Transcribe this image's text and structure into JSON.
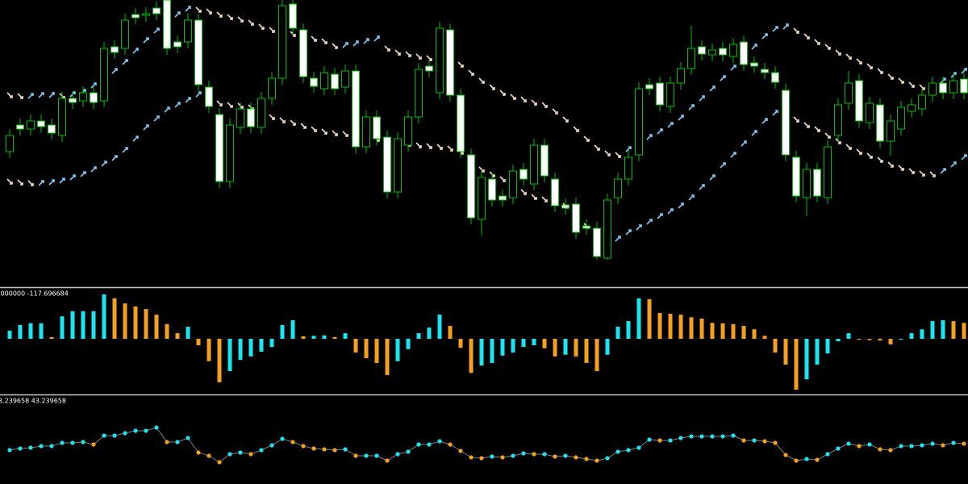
{
  "chart_data": [
    {
      "type": "candlestick",
      "up_color": "#00c000",
      "down_color": "#ffffff",
      "wick_color": "#00c000",
      "rising_arrow_color": "#7ec8f5",
      "falling_arrow_color": "#f3dcc0",
      "ylim": [
        0,
        360
      ],
      "open": [
        172,
        205,
        200,
        210,
        205,
        192,
        238,
        235,
        245,
        235,
        302,
        300,
        342,
        341,
        350,
        360,
        308,
        308,
        335,
        252,
        218,
        135,
        202,
        225,
        202,
        238,
        263,
        355,
        323,
        263,
        250,
        268,
        252,
        272,
        178,
        215,
        190,
        122,
        180,
        215,
        278,
        245,
        323,
        242,
        168,
        88,
        138,
        117,
        115,
        150,
        132,
        180,
        138,
        106,
        107,
        80,
        77,
        40,
        115,
        138,
        168,
        255,
        257,
        228,
        257,
        275,
        302,
        292,
        300,
        290,
        308,
        282,
        274,
        270,
        248,
        165,
        115,
        150,
        115,
        192,
        232,
        260,
        208,
        230,
        185,
        200,
        222,
        225,
        242,
        257,
        245,
        262
      ],
      "high": [
        200,
        213,
        218,
        218,
        213,
        246,
        246,
        253,
        253,
        308,
        310,
        343,
        350,
        351,
        358,
        360,
        316,
        343,
        343,
        260,
        226,
        213,
        233,
        233,
        246,
        271,
        360,
        360,
        331,
        271,
        278,
        276,
        280,
        280,
        223,
        223,
        198,
        196,
        223,
        282,
        286,
        333,
        331,
        250,
        176,
        148,
        146,
        125,
        156,
        158,
        188,
        188,
        146,
        114,
        115,
        88,
        85,
        120,
        146,
        173,
        258,
        263,
        265,
        265,
        283,
        328,
        310,
        306,
        308,
        313,
        316,
        290,
        282,
        278,
        256,
        173,
        158,
        158,
        186,
        238,
        272,
        268,
        240,
        238,
        218,
        235,
        238,
        250,
        265,
        265,
        268,
        270
      ],
      "low": [
        164,
        192,
        192,
        195,
        187,
        184,
        225,
        227,
        225,
        227,
        287,
        292,
        330,
        333,
        335,
        292,
        294,
        300,
        247,
        220,
        127,
        127,
        194,
        195,
        194,
        230,
        255,
        317,
        257,
        245,
        242,
        242,
        244,
        170,
        170,
        180,
        114,
        114,
        172,
        207,
        264,
        237,
        234,
        164,
        82,
        68,
        104,
        104,
        107,
        130,
        124,
        134,
        97,
        94,
        64,
        69,
        38,
        38,
        107,
        130,
        160,
        242,
        222,
        220,
        249,
        267,
        285,
        284,
        284,
        282,
        272,
        270,
        262,
        250,
        160,
        109,
        92,
        109,
        107,
        184,
        224,
        202,
        200,
        177,
        167,
        192,
        214,
        217,
        234,
        237,
        237,
        237
      ],
      "close": [
        192,
        200,
        210,
        203,
        195,
        238,
        233,
        245,
        233,
        300,
        295,
        335,
        338,
        343,
        343,
        300,
        302,
        335,
        255,
        228,
        135,
        205,
        225,
        203,
        238,
        263,
        353,
        325,
        265,
        253,
        270,
        250,
        272,
        178,
        215,
        188,
        122,
        188,
        215,
        274,
        272,
        325,
        242,
        172,
        90,
        140,
        112,
        112,
        148,
        138,
        180,
        142,
        105,
        102,
        72,
        77,
        42,
        112,
        138,
        165,
        250,
        250,
        230,
        257,
        275,
        300,
        293,
        298,
        292,
        305,
        280,
        278,
        270,
        258,
        168,
        117,
        150,
        117,
        178,
        230,
        257,
        210,
        232,
        185,
        210,
        227,
        230,
        242,
        257,
        245,
        260,
        245
      ],
      "series": [
        {
          "values": [
            242,
            241,
            241,
            242,
            242,
            241,
            243,
            246,
            254,
            263,
            272,
            283,
            297,
            310,
            322,
            334,
            342,
            349,
            348,
            346,
            342,
            339,
            336,
            332,
            327,
            323,
            320,
            318,
            316,
            312,
            309,
            303,
            304,
            306,
            309,
            312,
            300,
            295,
            293,
            290,
            288,
            288,
            284,
            280,
            270,
            260,
            252,
            245,
            240,
            237,
            233,
            230,
            222,
            212,
            200,
            188,
            177,
            170,
            168,
            175,
            184,
            190,
            197,
            205,
            214,
            227,
            238,
            250,
            263,
            276,
            288,
            302,
            315,
            324,
            327,
            322,
            315,
            308,
            302,
            295,
            290,
            284,
            278,
            272,
            265,
            260,
            255,
            252,
            250,
            260,
            267,
            272
          ]
        },
        {
          "values": [
            135,
            134,
            133,
            133,
            134,
            136,
            140,
            144,
            150,
            157,
            164,
            174,
            188,
            202,
            213,
            224,
            230,
            236,
            243,
            235,
            232,
            230,
            229,
            227,
            220,
            215,
            211,
            208,
            204,
            200,
            197,
            195,
            194,
            192,
            190,
            188,
            186,
            184,
            182,
            180,
            179,
            178,
            176,
            172,
            157,
            150,
            144,
            138,
            130,
            122,
            116,
            113,
            110,
            105,
            94,
            80,
            68,
            62,
            64,
            72,
            78,
            85,
            92,
            98,
            105,
            115,
            128,
            140,
            155,
            168,
            182,
            195,
            210,
            220,
            222,
            212,
            205,
            200,
            192,
            185,
            178,
            172,
            167,
            162,
            156,
            152,
            148,
            145,
            144,
            148,
            156,
            165
          ]
        }
      ]
    },
    {
      "type": "bar",
      "header": ".000000 -117.696684",
      "rising_color": "#19e6f0",
      "falling_color": "#f5a01e",
      "ylim": [
        -131,
        116
      ],
      "values": [
        19,
        32,
        36,
        36,
        4,
        52,
        64,
        64,
        64,
        103,
        94,
        82,
        75,
        69,
        56,
        34,
        13,
        28,
        -15,
        -52,
        -101,
        -75,
        -49,
        -41,
        -30,
        -19,
        32,
        43,
        6,
        7,
        8,
        4,
        13,
        -32,
        -45,
        -56,
        -84,
        -52,
        -24,
        13,
        26,
        56,
        30,
        -21,
        -79,
        -62,
        -56,
        -39,
        -32,
        -19,
        -15,
        -22,
        -41,
        -37,
        -41,
        -56,
        -75,
        -37,
        28,
        41,
        94,
        92,
        60,
        58,
        56,
        50,
        47,
        37,
        36,
        34,
        30,
        22,
        7,
        -32,
        -60,
        -118,
        -94,
        -60,
        -34,
        -6,
        13,
        -2,
        -3,
        -4,
        -13,
        -2,
        13,
        22,
        41,
        43,
        41,
        37
      ]
    },
    {
      "type": "line",
      "header": "3.239658 43.239658",
      "line_color": "#808080",
      "rising_color": "#19e6f0",
      "falling_color": "#f5a01e",
      "ylim": [
        0,
        108
      ],
      "values": [
        42,
        44,
        45,
        47,
        47,
        51,
        51,
        52,
        49,
        60,
        60,
        63,
        66,
        66,
        70,
        52,
        52,
        57,
        39,
        35,
        27,
        37,
        39,
        37,
        42,
        48,
        56,
        52,
        47,
        44,
        43,
        42,
        43,
        35,
        35,
        35,
        29,
        37,
        40,
        49,
        49,
        53,
        49,
        41,
        33,
        32,
        34,
        33,
        35,
        38,
        37,
        37,
        34,
        35,
        33,
        31,
        29,
        32,
        40,
        42,
        45,
        55,
        54,
        54,
        57,
        59,
        59,
        59,
        59,
        60,
        54,
        54,
        53,
        51,
        36,
        29,
        31,
        30,
        37,
        44,
        50,
        47,
        49,
        43,
        42,
        47,
        47,
        48,
        50,
        48,
        51,
        50
      ]
    }
  ]
}
